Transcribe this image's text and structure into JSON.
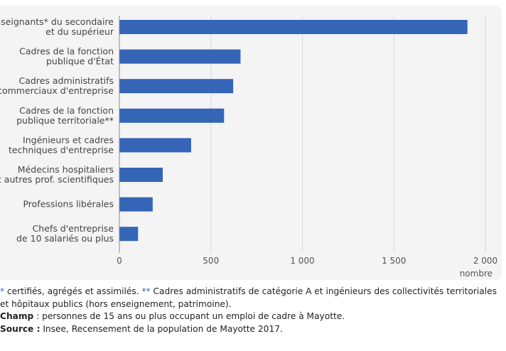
{
  "chart_data": {
    "type": "bar",
    "orientation": "horizontal",
    "categories": [
      [
        "Enseignants* du secondaire",
        "et du supérieur"
      ],
      [
        "Cadres de la fonction",
        "publique d'État"
      ],
      [
        "Cadres administratifs",
        "et commerciaux d'entreprise"
      ],
      [
        "Cadres de la fonction",
        "publique territoriale**"
      ],
      [
        "Ingénieurs et cadres",
        "techniques d'entreprise"
      ],
      [
        "Médecins hospitaliers",
        "et autres prof. scientifiques"
      ],
      [
        "Professions libérales"
      ],
      [
        "Chefs d'entreprise",
        "de 10 salariés ou plus"
      ]
    ],
    "values": [
      1900,
      660,
      620,
      570,
      390,
      235,
      180,
      100
    ],
    "xlim": [
      0,
      2000
    ],
    "xticks": [
      0,
      500,
      1000,
      1500,
      2000
    ],
    "xtick_labels": [
      "0",
      "500",
      "1 000",
      "1 500",
      "2 000"
    ],
    "xlabel": "nombre",
    "grid": "vertical",
    "bar_color": "#3565b7"
  },
  "notes": {
    "line1_star": "*",
    "line1_a": " certifiés, agrégés et assimilés. ",
    "line1_star2": "**",
    "line1_b": " Cadres administratifs de catégorie A et ingénieurs des collectivités territoriales",
    "line2": "et hôpitaux publics (hors enseignement, patrimoine).",
    "champ_label": "Champ",
    "champ_text": " : personnes de 15 ans ou plus occupant un emploi de cadre à Mayotte.",
    "source_label": "Source :",
    "source_text": " Insee, Recensement de la population de Mayotte 2017."
  }
}
